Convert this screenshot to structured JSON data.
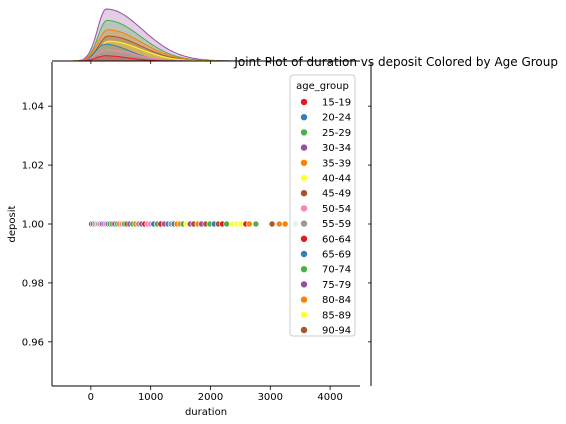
{
  "chart_data": {
    "type": "scatter",
    "title": "Joint Plot of duration vs deposit Colored by Age Group",
    "xlabel": "duration",
    "ylabel": "deposit",
    "xlim": [
      -650,
      4500
    ],
    "ylim": [
      0.945,
      1.055
    ],
    "xticks": [
      0,
      1000,
      2000,
      3000,
      4000
    ],
    "yticks": [
      0.96,
      0.98,
      1.0,
      1.02,
      1.04
    ],
    "ytick_labels": [
      "0.96",
      "0.98",
      "1.00",
      "1.02",
      "1.04"
    ],
    "grid": false,
    "marginal_x": "kde",
    "legend": {
      "title": "age_group",
      "placement": "upper-right",
      "entries": [
        {
          "label": "15-19",
          "color": "#e41a1c"
        },
        {
          "label": "20-24",
          "color": "#377eb8"
        },
        {
          "label": "25-29",
          "color": "#4daf4a"
        },
        {
          "label": "30-34",
          "color": "#984ea3"
        },
        {
          "label": "35-39",
          "color": "#ff7f00"
        },
        {
          "label": "40-44",
          "color": "#ffff33"
        },
        {
          "label": "45-49",
          "color": "#a65628"
        },
        {
          "label": "50-54",
          "color": "#f781bf"
        },
        {
          "label": "55-59",
          "color": "#999999"
        },
        {
          "label": "60-64",
          "color": "#e41a1c"
        },
        {
          "label": "65-69",
          "color": "#377eb8"
        },
        {
          "label": "70-74",
          "color": "#4daf4a"
        },
        {
          "label": "75-79",
          "color": "#984ea3"
        },
        {
          "label": "80-84",
          "color": "#ff7f00"
        },
        {
          "label": "85-89",
          "color": "#ffff33"
        },
        {
          "label": "90-94",
          "color": "#a65628"
        }
      ]
    },
    "points": [
      {
        "x": 10,
        "y": 1.0,
        "color": "#984ea3"
      },
      {
        "x": 40,
        "y": 1.0,
        "color": "#984ea3"
      },
      {
        "x": 70,
        "y": 1.0,
        "color": "#4daf4a"
      },
      {
        "x": 100,
        "y": 1.0,
        "color": "#f781bf"
      },
      {
        "x": 130,
        "y": 1.0,
        "color": "#999999"
      },
      {
        "x": 160,
        "y": 1.0,
        "color": "#f781bf"
      },
      {
        "x": 190,
        "y": 1.0,
        "color": "#984ea3"
      },
      {
        "x": 220,
        "y": 1.0,
        "color": "#377eb8"
      },
      {
        "x": 250,
        "y": 1.0,
        "color": "#f781bf"
      },
      {
        "x": 290,
        "y": 1.0,
        "color": "#984ea3"
      },
      {
        "x": 320,
        "y": 1.0,
        "color": "#4daf4a"
      },
      {
        "x": 360,
        "y": 1.0,
        "color": "#4daf4a"
      },
      {
        "x": 400,
        "y": 1.0,
        "color": "#984ea3"
      },
      {
        "x": 440,
        "y": 1.0,
        "color": "#4daf4a"
      },
      {
        "x": 480,
        "y": 1.0,
        "color": "#ff7f00"
      },
      {
        "x": 520,
        "y": 1.0,
        "color": "#f781bf"
      },
      {
        "x": 560,
        "y": 1.0,
        "color": "#4daf4a"
      },
      {
        "x": 600,
        "y": 1.0,
        "color": "#a65628"
      },
      {
        "x": 650,
        "y": 1.0,
        "color": "#984ea3"
      },
      {
        "x": 700,
        "y": 1.0,
        "color": "#4daf4a"
      },
      {
        "x": 750,
        "y": 1.0,
        "color": "#ff7f00"
      },
      {
        "x": 800,
        "y": 1.0,
        "color": "#999999"
      },
      {
        "x": 850,
        "y": 1.0,
        "color": "#984ea3"
      },
      {
        "x": 900,
        "y": 1.0,
        "color": "#e41a1c"
      },
      {
        "x": 950,
        "y": 1.0,
        "color": "#f781bf"
      },
      {
        "x": 1000,
        "y": 1.0,
        "color": "#f781bf"
      },
      {
        "x": 1050,
        "y": 1.0,
        "color": "#377eb8"
      },
      {
        "x": 1110,
        "y": 1.0,
        "color": "#4daf4a"
      },
      {
        "x": 1170,
        "y": 1.0,
        "color": "#e41a1c"
      },
      {
        "x": 1230,
        "y": 1.0,
        "color": "#984ea3"
      },
      {
        "x": 1290,
        "y": 1.0,
        "color": "#377eb8"
      },
      {
        "x": 1340,
        "y": 1.0,
        "color": "#999999"
      },
      {
        "x": 1390,
        "y": 1.0,
        "color": "#377eb8"
      },
      {
        "x": 1440,
        "y": 1.0,
        "color": "#ff7f00"
      },
      {
        "x": 1490,
        "y": 1.0,
        "color": "#ff7f00"
      },
      {
        "x": 1540,
        "y": 1.0,
        "color": "#4daf4a"
      },
      {
        "x": 1600,
        "y": 1.0,
        "color": "#ffff33"
      },
      {
        "x": 1660,
        "y": 1.0,
        "color": "#984ea3"
      },
      {
        "x": 1720,
        "y": 1.0,
        "color": "#a65628"
      },
      {
        "x": 1790,
        "y": 1.0,
        "color": "#ff7f00"
      },
      {
        "x": 1850,
        "y": 1.0,
        "color": "#984ea3"
      },
      {
        "x": 1920,
        "y": 1.0,
        "color": "#a65628"
      },
      {
        "x": 1990,
        "y": 1.0,
        "color": "#4daf4a"
      },
      {
        "x": 2060,
        "y": 1.0,
        "color": "#377eb8"
      },
      {
        "x": 2130,
        "y": 1.0,
        "color": "#a65628"
      },
      {
        "x": 2200,
        "y": 1.0,
        "color": "#e41a1c"
      },
      {
        "x": 2270,
        "y": 1.0,
        "color": "#4daf4a"
      },
      {
        "x": 2370,
        "y": 1.0,
        "color": "#ffff33"
      },
      {
        "x": 2440,
        "y": 1.0,
        "color": "#ffff33"
      },
      {
        "x": 2510,
        "y": 1.0,
        "color": "#ffff33"
      },
      {
        "x": 2590,
        "y": 1.0,
        "color": "#e41a1c"
      },
      {
        "x": 2650,
        "y": 1.0,
        "color": "#ff7f00"
      },
      {
        "x": 2760,
        "y": 1.0,
        "color": "#4daf4a"
      },
      {
        "x": 3030,
        "y": 1.0,
        "color": "#a65628"
      },
      {
        "x": 3150,
        "y": 1.0,
        "color": "#ff7f00"
      },
      {
        "x": 3250,
        "y": 1.0,
        "color": "#ff7f00"
      },
      {
        "x": 3420,
        "y": 1.0,
        "color": "#4daf4a"
      }
    ],
    "kde_series": [
      {
        "color": "#984ea3",
        "peak_x": 260,
        "peak": 1.0,
        "sigma_l": 150,
        "sigma_r": 600
      },
      {
        "color": "#4daf4a",
        "peak_x": 270,
        "peak": 0.78,
        "sigma_l": 150,
        "sigma_r": 560
      },
      {
        "color": "#ff7f00",
        "peak_x": 280,
        "peak": 0.6,
        "sigma_l": 160,
        "sigma_r": 560
      },
      {
        "color": "#a65628",
        "peak_x": 290,
        "peak": 0.48,
        "sigma_l": 160,
        "sigma_r": 540
      },
      {
        "color": "#ffff33",
        "peak_x": 300,
        "peak": 0.38,
        "sigma_l": 170,
        "sigma_r": 520
      },
      {
        "color": "#377eb8",
        "peak_x": 230,
        "peak": 0.32,
        "sigma_l": 140,
        "sigma_r": 420
      },
      {
        "color": "#f781bf",
        "peak_x": 260,
        "peak": 0.22,
        "sigma_l": 150,
        "sigma_r": 460
      },
      {
        "color": "#999999",
        "peak_x": 250,
        "peak": 0.16,
        "sigma_l": 150,
        "sigma_r": 420
      },
      {
        "color": "#e41a1c",
        "peak_x": 240,
        "peak": 0.1,
        "sigma_l": 150,
        "sigma_r": 380
      }
    ]
  }
}
